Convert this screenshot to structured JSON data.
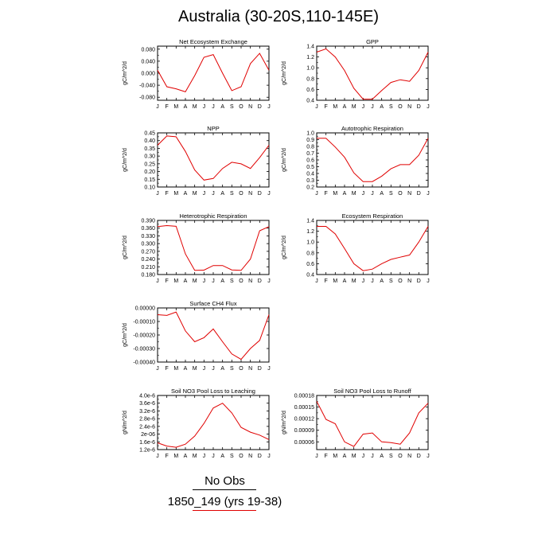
{
  "title": "Australia (30-20S,110-145E)",
  "footer": {
    "line1": "No Obs",
    "line2": "1850_149 (yrs 19-38)"
  },
  "colors": {
    "series": "#e00000",
    "axis": "#000000",
    "footer_rule1": "#000000",
    "footer_rule2": "#e00000"
  },
  "chart_data": [
    {
      "type": "line",
      "title": "Net Ecosystem Exchange",
      "ylabel": "gC/m^2/d",
      "x": [
        "J",
        "F",
        "M",
        "A",
        "M",
        "J",
        "J",
        "A",
        "S",
        "O",
        "N",
        "D",
        "J"
      ],
      "ylim": [
        -0.09,
        0.09
      ],
      "yticks": [
        -0.08,
        -0.04,
        0.0,
        0.04,
        0.08
      ],
      "ytick_labels": [
        "-0.080",
        "-0.040",
        "0.000",
        "0.040",
        "0.080"
      ],
      "series": [
        {
          "values": [
            0.01,
            -0.045,
            -0.052,
            -0.062,
            -0.008,
            0.053,
            0.062,
            0.0,
            -0.058,
            -0.045,
            0.032,
            0.066,
            0.01
          ]
        }
      ]
    },
    {
      "type": "line",
      "title": "GPP",
      "ylabel": "gC/m^2/d",
      "x": [
        "J",
        "F",
        "M",
        "A",
        "M",
        "J",
        "J",
        "A",
        "S",
        "O",
        "N",
        "D",
        "J"
      ],
      "ylim": [
        0.4,
        1.4
      ],
      "yticks": [
        0.4,
        0.6,
        0.8,
        1.0,
        1.2,
        1.4
      ],
      "ytick_labels": [
        "0.4",
        "0.6",
        "0.8",
        "1.0",
        "1.2",
        "1.4"
      ],
      "series": [
        {
          "values": [
            1.29,
            1.35,
            1.2,
            0.95,
            0.62,
            0.42,
            0.42,
            0.58,
            0.73,
            0.78,
            0.75,
            0.95,
            1.29
          ]
        }
      ]
    },
    {
      "type": "line",
      "title": "NPP",
      "ylabel": "gC/m^2/d",
      "x": [
        "J",
        "F",
        "M",
        "A",
        "M",
        "J",
        "J",
        "A",
        "S",
        "O",
        "N",
        "D",
        "J"
      ],
      "ylim": [
        0.1,
        0.45
      ],
      "yticks": [
        0.1,
        0.15,
        0.2,
        0.25,
        0.3,
        0.35,
        0.4,
        0.45
      ],
      "ytick_labels": [
        "0.10",
        "0.15",
        "0.20",
        "0.25",
        "0.30",
        "0.35",
        "0.40",
        "0.45"
      ],
      "series": [
        {
          "values": [
            0.37,
            0.43,
            0.425,
            0.33,
            0.21,
            0.145,
            0.155,
            0.22,
            0.26,
            0.25,
            0.22,
            0.29,
            0.37
          ]
        }
      ]
    },
    {
      "type": "line",
      "title": "Autotrophic Respiration",
      "ylabel": "gC/m^2/d",
      "x": [
        "J",
        "F",
        "M",
        "A",
        "M",
        "J",
        "J",
        "A",
        "S",
        "O",
        "N",
        "D",
        "J"
      ],
      "ylim": [
        0.2,
        1.0
      ],
      "yticks": [
        0.2,
        0.3,
        0.4,
        0.5,
        0.6,
        0.7,
        0.8,
        0.9,
        1.0
      ],
      "ytick_labels": [
        "0.2",
        "0.3",
        "0.4",
        "0.5",
        "0.6",
        "0.7",
        "0.8",
        "0.9",
        "1.0"
      ],
      "series": [
        {
          "values": [
            0.92,
            0.92,
            0.79,
            0.64,
            0.41,
            0.28,
            0.28,
            0.36,
            0.47,
            0.53,
            0.53,
            0.67,
            0.92
          ]
        }
      ]
    },
    {
      "type": "line",
      "title": "Heterotrophic Respiration",
      "ylabel": "gC/m^2/d",
      "x": [
        "J",
        "F",
        "M",
        "A",
        "M",
        "J",
        "J",
        "A",
        "S",
        "O",
        "N",
        "D",
        "J"
      ],
      "ylim": [
        0.18,
        0.39
      ],
      "yticks": [
        0.18,
        0.21,
        0.24,
        0.27,
        0.3,
        0.33,
        0.36,
        0.39
      ],
      "ytick_labels": [
        "0.180",
        "0.210",
        "0.240",
        "0.270",
        "0.300",
        "0.330",
        "0.360",
        "0.390"
      ],
      "series": [
        {
          "values": [
            0.366,
            0.37,
            0.367,
            0.26,
            0.196,
            0.197,
            0.215,
            0.215,
            0.198,
            0.196,
            0.24,
            0.35,
            0.366
          ]
        }
      ]
    },
    {
      "type": "line",
      "title": "Ecosystem Respiration",
      "ylabel": "gC/m^2/d",
      "x": [
        "J",
        "F",
        "M",
        "A",
        "M",
        "J",
        "J",
        "A",
        "S",
        "O",
        "N",
        "D",
        "J"
      ],
      "ylim": [
        0.4,
        1.4
      ],
      "yticks": [
        0.4,
        0.6,
        0.8,
        1.0,
        1.2,
        1.4
      ],
      "ytick_labels": [
        "0.4",
        "0.6",
        "0.8",
        "1.0",
        "1.2",
        "1.4"
      ],
      "series": [
        {
          "values": [
            1.29,
            1.29,
            1.15,
            0.88,
            0.6,
            0.47,
            0.5,
            0.6,
            0.68,
            0.72,
            0.76,
            1.0,
            1.29
          ]
        }
      ]
    },
    {
      "type": "line",
      "title": "Surface CH4 Flux",
      "ylabel": "gC/m^2/d",
      "x": [
        "J",
        "F",
        "M",
        "A",
        "M",
        "J",
        "J",
        "A",
        "S",
        "O",
        "N",
        "D",
        "J"
      ],
      "ylim": [
        -0.0004,
        0.0
      ],
      "yticks": [
        -0.0004,
        -0.0003,
        -0.0002,
        -0.0001,
        0.0
      ],
      "ytick_labels": [
        "-0.00040",
        "-0.00030",
        "-0.00020",
        "-0.00010",
        "0.00000"
      ],
      "series": [
        {
          "values": [
            -5e-05,
            -5.5e-05,
            -3e-05,
            -0.00017,
            -0.00025,
            -0.00022,
            -0.000155,
            -0.00025,
            -0.00034,
            -0.00038,
            -0.0003,
            -0.00024,
            -5e-05
          ]
        }
      ]
    },
    {
      "type": "line",
      "title": "Soil NO3 Pool Loss to Leaching",
      "ylabel": "gN/m^2/d",
      "x": [
        "J",
        "F",
        "M",
        "A",
        "M",
        "J",
        "J",
        "A",
        "S",
        "O",
        "N",
        "D",
        "J"
      ],
      "ylim": [
        1.2e-06,
        4e-06
      ],
      "yticks": [
        1.2e-06,
        1.6e-06,
        2e-06,
        2.4e-06,
        2.8e-06,
        3.2e-06,
        3.6e-06,
        4e-06
      ],
      "ytick_labels": [
        "1.2e-6",
        "1.6e-6",
        "2e-06",
        "2.4e-6",
        "2.8e-6",
        "3.2e-6",
        "3.6e-6",
        "4.0e-6"
      ],
      "series": [
        {
          "values": [
            1.55e-06,
            1.38e-06,
            1.32e-06,
            1.48e-06,
            1.9e-06,
            2.55e-06,
            3.35e-06,
            3.6e-06,
            3.1e-06,
            2.35e-06,
            2.1e-06,
            1.95e-06,
            1.72e-06
          ]
        }
      ]
    },
    {
      "type": "line",
      "title": "Soil NO3 Pool Loss to Runoff",
      "ylabel": "gN/m^2/d",
      "x": [
        "J",
        "F",
        "M",
        "A",
        "M",
        "J",
        "J",
        "A",
        "S",
        "O",
        "N",
        "D",
        "J"
      ],
      "ylim": [
        4e-05,
        0.00018
      ],
      "yticks": [
        6e-05,
        9e-05,
        0.00012,
        0.00015,
        0.00018
      ],
      "ytick_labels": [
        "0.00006",
        "0.00009",
        "0.00012",
        "0.00015",
        "0.00018"
      ],
      "series": [
        {
          "values": [
            0.000165,
            0.000118,
            0.000107,
            6e-05,
            4.8e-05,
            8e-05,
            8.3e-05,
            6e-05,
            5.8e-05,
            5.4e-05,
            8.3e-05,
            0.000135,
            0.00016
          ]
        }
      ]
    }
  ]
}
